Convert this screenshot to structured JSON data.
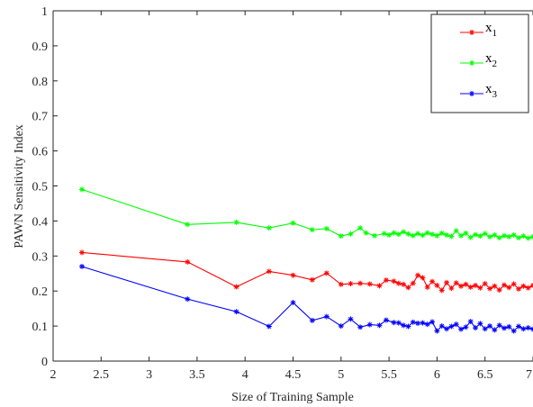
{
  "chart_data": {
    "type": "line",
    "title": "",
    "xlabel": "Size of Training Sample",
    "ylabel": "PAWN Sensitivity Index",
    "xlim": [
      2,
      7
    ],
    "ylim": [
      0,
      1
    ],
    "xticks": [
      2,
      2.5,
      3,
      3.5,
      4,
      4.5,
      5,
      5.5,
      6,
      6.5,
      7
    ],
    "xtick_labels": [
      "2",
      "2.5",
      "3",
      "3.5",
      "4",
      "4.5",
      "5",
      "5.5",
      "6",
      "6.5",
      "7"
    ],
    "yticks": [
      0,
      0.1,
      0.2,
      0.3,
      0.4,
      0.5,
      0.6,
      0.7,
      0.8,
      0.9,
      1
    ],
    "ytick_labels": [
      "0",
      "0.1",
      "0.2",
      "0.3",
      "0.4",
      "0.5",
      "0.6",
      "0.7",
      "0.8",
      "0.9",
      "1"
    ],
    "grid": false,
    "legend": "top-right",
    "series": [
      {
        "name": "x1",
        "label_base": "x",
        "label_sub": "1",
        "color": "#ff0000",
        "marker": "asterisk",
        "x": [
          2.3,
          3.4,
          3.91,
          4.25,
          4.5,
          4.7,
          4.85,
          5.0,
          5.1,
          5.2,
          5.3,
          5.4,
          5.47,
          5.55,
          5.6,
          5.65,
          5.7,
          5.75,
          5.8,
          5.85,
          5.9,
          5.95,
          6.0,
          6.05,
          6.1,
          6.15,
          6.2,
          6.25,
          6.3,
          6.35,
          6.4,
          6.45,
          6.5,
          6.55,
          6.6,
          6.65,
          6.7,
          6.75,
          6.8,
          6.85,
          6.9,
          6.95,
          7.0
        ],
        "y": [
          0.31,
          0.283,
          0.212,
          0.256,
          0.245,
          0.232,
          0.251,
          0.219,
          0.221,
          0.222,
          0.22,
          0.215,
          0.231,
          0.228,
          0.222,
          0.219,
          0.21,
          0.222,
          0.245,
          0.238,
          0.211,
          0.227,
          0.216,
          0.202,
          0.224,
          0.208,
          0.223,
          0.214,
          0.219,
          0.211,
          0.216,
          0.209,
          0.221,
          0.207,
          0.214,
          0.203,
          0.217,
          0.21,
          0.22,
          0.206,
          0.214,
          0.209,
          0.216
        ]
      },
      {
        "name": "x2",
        "label_base": "x",
        "label_sub": "2",
        "color": "#00ff00",
        "marker": "asterisk",
        "x": [
          2.3,
          3.4,
          3.91,
          4.25,
          4.5,
          4.7,
          4.85,
          5.0,
          5.1,
          5.2,
          5.26,
          5.35,
          5.45,
          5.5,
          5.55,
          5.6,
          5.65,
          5.7,
          5.75,
          5.8,
          5.85,
          5.9,
          5.95,
          6.0,
          6.05,
          6.1,
          6.15,
          6.2,
          6.25,
          6.3,
          6.35,
          6.4,
          6.45,
          6.5,
          6.55,
          6.6,
          6.65,
          6.7,
          6.75,
          6.8,
          6.85,
          6.9,
          6.95,
          7.0
        ],
        "y": [
          0.49,
          0.39,
          0.396,
          0.38,
          0.394,
          0.375,
          0.378,
          0.357,
          0.363,
          0.38,
          0.366,
          0.358,
          0.364,
          0.36,
          0.366,
          0.362,
          0.369,
          0.363,
          0.358,
          0.364,
          0.359,
          0.366,
          0.362,
          0.358,
          0.365,
          0.36,
          0.356,
          0.372,
          0.358,
          0.365,
          0.353,
          0.361,
          0.357,
          0.364,
          0.355,
          0.36,
          0.352,
          0.358,
          0.355,
          0.36,
          0.352,
          0.357,
          0.351,
          0.355
        ]
      },
      {
        "name": "x3",
        "label_base": "x",
        "label_sub": "3",
        "color": "#0000ff",
        "marker": "asterisk",
        "x": [
          2.3,
          3.4,
          3.91,
          4.25,
          4.5,
          4.7,
          4.85,
          5.0,
          5.1,
          5.2,
          5.3,
          5.4,
          5.47,
          5.55,
          5.6,
          5.65,
          5.7,
          5.75,
          5.8,
          5.85,
          5.9,
          5.95,
          6.0,
          6.05,
          6.1,
          6.15,
          6.2,
          6.25,
          6.3,
          6.35,
          6.4,
          6.45,
          6.5,
          6.55,
          6.6,
          6.65,
          6.7,
          6.75,
          6.8,
          6.85,
          6.9,
          6.95,
          7.0
        ],
        "y": [
          0.27,
          0.177,
          0.141,
          0.099,
          0.167,
          0.116,
          0.127,
          0.1,
          0.12,
          0.097,
          0.104,
          0.102,
          0.117,
          0.11,
          0.109,
          0.102,
          0.099,
          0.111,
          0.108,
          0.109,
          0.105,
          0.112,
          0.086,
          0.1,
          0.092,
          0.099,
          0.105,
          0.091,
          0.097,
          0.113,
          0.095,
          0.107,
          0.092,
          0.1,
          0.089,
          0.102,
          0.094,
          0.098,
          0.086,
          0.099,
          0.092,
          0.095,
          0.091
        ]
      }
    ]
  }
}
